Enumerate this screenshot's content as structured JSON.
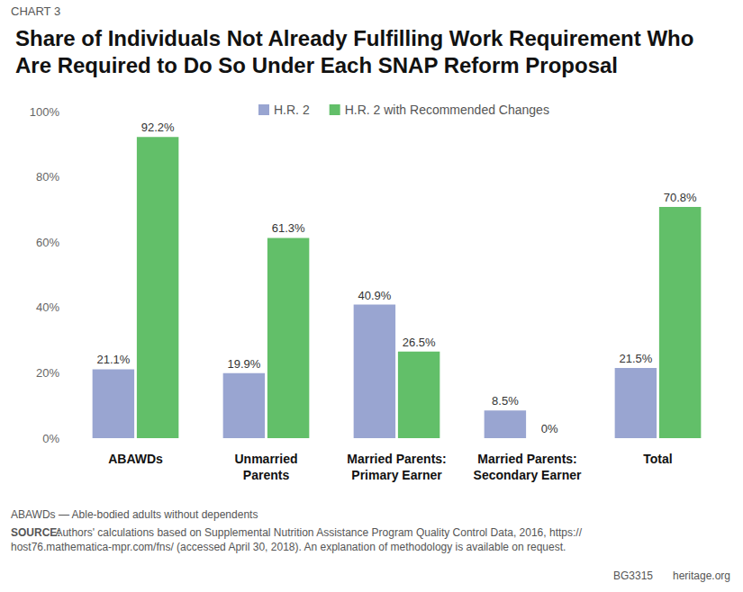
{
  "chart_data": {
    "type": "bar",
    "title": "Share of Individuals Not Already Fulfilling Work Requirement Who Are Required to Do So Under Each SNAP Reform Proposal",
    "annotations": {
      "kicker": "CHART 3",
      "footnote": "ABAWDs — Able-bodied adults without dependents",
      "source_label": "SOURCE:",
      "source": "Authors' calculations based on Supplemental Nutrition Assistance Program Quality Control Data, 2016, https://host76.mathematica-mpr.com/fns/ (accessed April 30, 2018). An explanation of methodology is available on request.",
      "code": "BG3315",
      "site": "heritage.org"
    },
    "categories": [
      "ABAWDs",
      "Unmarried\nParents",
      "Married Parents:\nPrimary Earner",
      "Married Parents:\nSecondary Earner",
      "Total"
    ],
    "series": [
      {
        "name": "H.R. 2",
        "color": "#99a5d1",
        "values": [
          21.1,
          19.9,
          40.9,
          8.5,
          21.5
        ],
        "value_labels": [
          "21.1%",
          "19.9%",
          "40.9%",
          "8.5%",
          "21.5%"
        ]
      },
      {
        "name": "H.R. 2 with Recommended Changes",
        "color": "#62bf69",
        "values": [
          92.2,
          61.3,
          26.5,
          0,
          70.8
        ],
        "value_labels": [
          "92.2%",
          "61.3%",
          "26.5%",
          "0%",
          "70.8%"
        ]
      }
    ],
    "ylim": [
      0,
      100
    ],
    "yticks": [
      {
        "value": 0,
        "label": "0%"
      },
      {
        "value": 20,
        "label": "20%"
      },
      {
        "value": 40,
        "label": "40%"
      },
      {
        "value": 60,
        "label": "60%"
      },
      {
        "value": 80,
        "label": "80%"
      },
      {
        "value": 100,
        "label": "100%"
      }
    ],
    "grid": false,
    "legend": "top",
    "data_labels": true
  }
}
